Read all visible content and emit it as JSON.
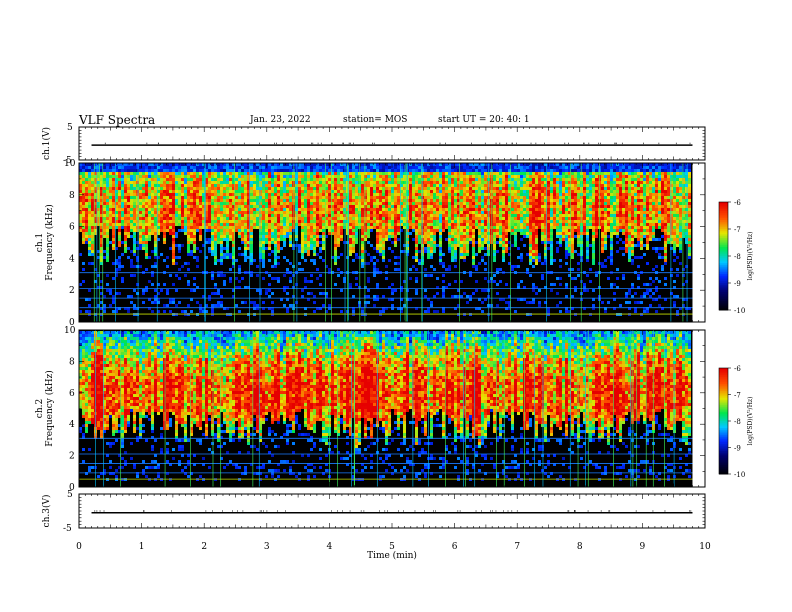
{
  "header": {
    "title": "VLF Spectra",
    "date": "Jan. 23, 2022",
    "station": "station= MOS",
    "start_ut": "start  UT =   20: 40: 1"
  },
  "chart_data": [
    {
      "type": "line",
      "ylabel": "ch.1(V)",
      "ylim": [
        -5,
        5
      ],
      "yticks": [
        "5",
        "-5"
      ],
      "xlim": [
        0,
        10
      ],
      "series": [
        {
          "values_constant": -0.5
        }
      ]
    },
    {
      "type": "heatmap",
      "ylabel": "ch.1\nFrequency (kHz)",
      "ylim": [
        0,
        10
      ],
      "yticks": [
        "0",
        "2",
        "4",
        "6",
        "8",
        "10"
      ],
      "xlim": [
        0,
        9.8
      ],
      "colorbar": {
        "label": "log(PSD)(V²/Hz)",
        "ticks": [
          "-6",
          "-7",
          "-8",
          "-9",
          "-10"
        ],
        "range": [
          -10,
          -6
        ]
      },
      "description_values": {
        "background_level": -10,
        "peak_level": -6,
        "peak_band_khz": [
          5,
          9
        ]
      }
    },
    {
      "type": "heatmap",
      "ylabel": "ch.2\nFrequency (kHz)",
      "ylim": [
        0,
        10
      ],
      "yticks": [
        "0",
        "2",
        "4",
        "6",
        "8",
        "10"
      ],
      "xlim": [
        0,
        9.8
      ],
      "colorbar": {
        "label": "log(PSD)(V²/Hz)",
        "ticks": [
          "-6",
          "-7",
          "-8",
          "-9",
          "-10"
        ],
        "range": [
          -10,
          -6
        ]
      },
      "description_values": {
        "background_level": -10,
        "peak_level": -6,
        "peak_band_khz": [
          4,
          8
        ]
      }
    },
    {
      "type": "line",
      "ylabel": "ch.3(V)",
      "ylim": [
        -5,
        5
      ],
      "yticks": [
        "5",
        "-5"
      ],
      "xlim": [
        0,
        10
      ],
      "xlabel": "Time  (min)",
      "xticks": [
        "0",
        "1",
        "2",
        "3",
        "4",
        "5",
        "6",
        "7",
        "8",
        "9",
        "10"
      ],
      "series": [
        {
          "values_constant": -0.5
        }
      ]
    }
  ]
}
